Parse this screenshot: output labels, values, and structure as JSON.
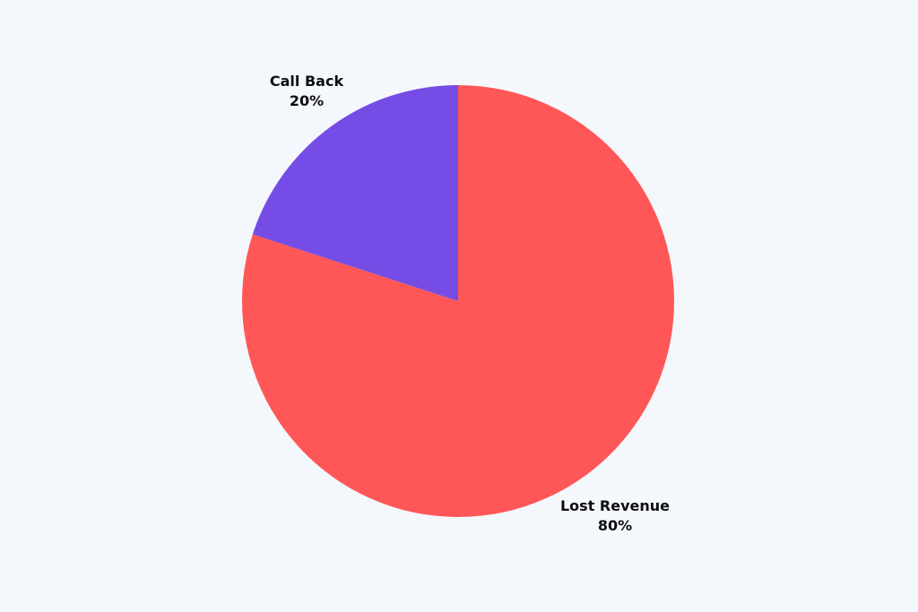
{
  "chart_data": {
    "type": "pie",
    "title": "",
    "slices": [
      {
        "label": "Lost Revenue",
        "value": 80,
        "value_label": "80%",
        "color": "#ff5757"
      },
      {
        "label": "Call Back",
        "value": 20,
        "value_label": "20%",
        "color": "#764ce6"
      }
    ],
    "start_angle_deg": 0,
    "direction": "clockwise",
    "legend": "none"
  },
  "colors": {
    "background": "#f4f8fc",
    "label_text": "#0d0d12"
  }
}
